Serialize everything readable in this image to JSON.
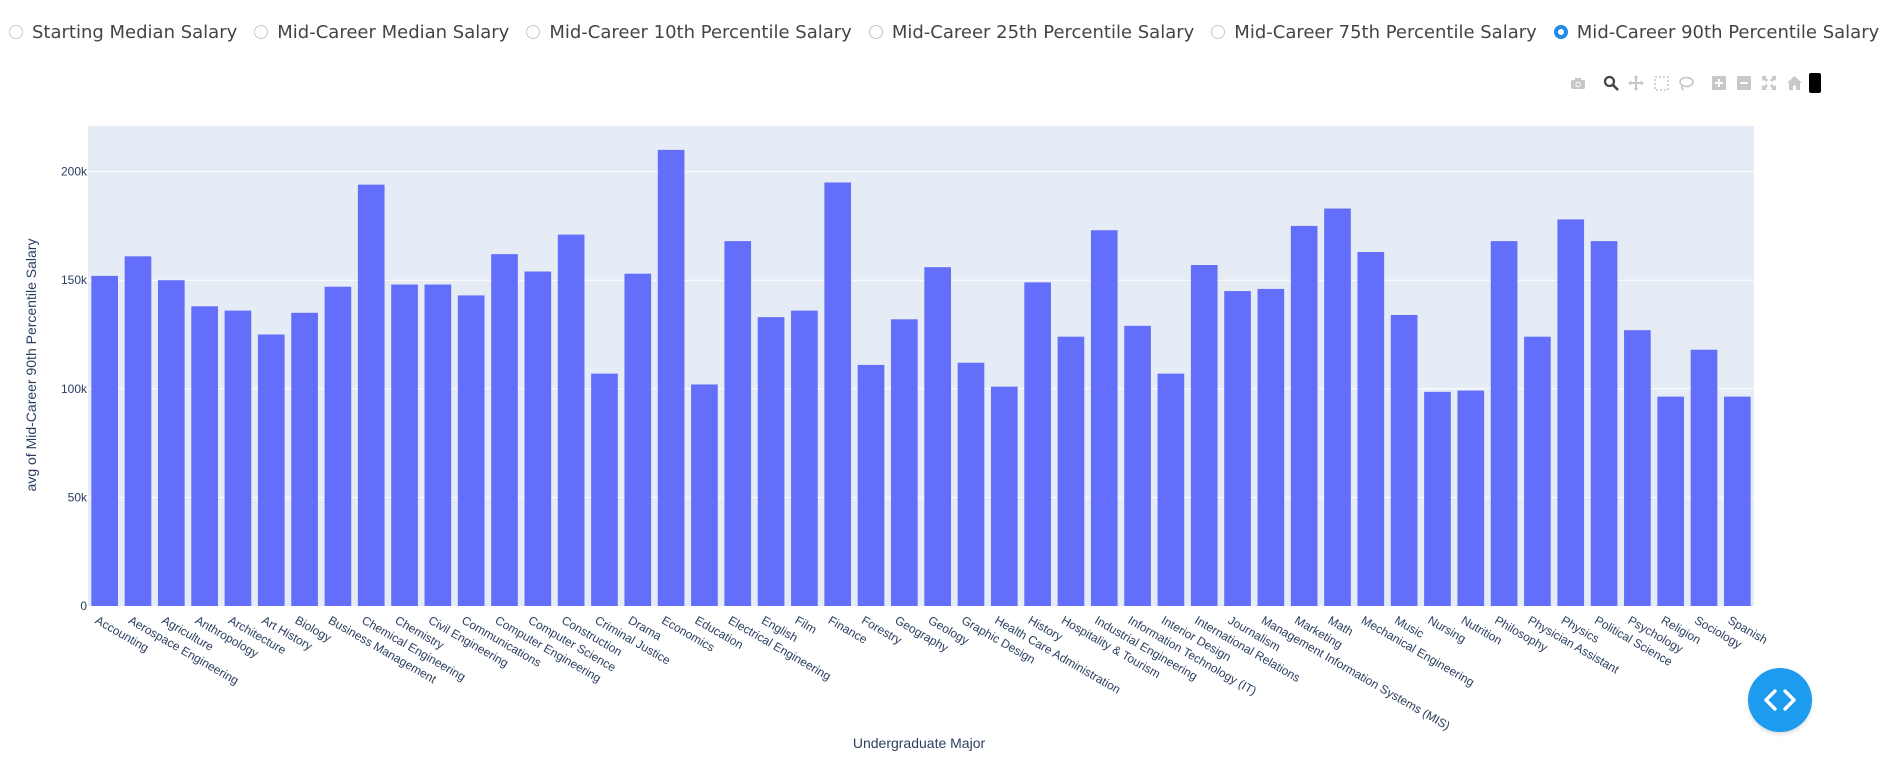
{
  "radio_options": [
    {
      "label": "Starting Median Salary",
      "checked": false
    },
    {
      "label": "Mid-Career Median Salary",
      "checked": false
    },
    {
      "label": "Mid-Career 10th Percentile Salary",
      "checked": false
    },
    {
      "label": "Mid-Career 25th Percentile Salary",
      "checked": false
    },
    {
      "label": "Mid-Career 75th Percentile Salary",
      "checked": false
    },
    {
      "label": "Mid-Career 90th Percentile Salary",
      "checked": true
    }
  ],
  "modebar": {
    "icons": [
      "camera-icon",
      "zoom-icon",
      "pan-icon",
      "box-select-icon",
      "lasso-icon",
      "zoom-in-icon",
      "zoom-out-icon",
      "autoscale-icon",
      "reset-axes-icon"
    ]
  },
  "colors": {
    "bar": "#636efa",
    "plot_bg": "#e5ecf6",
    "grid": "#ffffff",
    "tick_text": "#2a3f5f",
    "accent": "#228be6",
    "fab": "#1c9bef"
  },
  "chart_data": {
    "type": "bar",
    "xlabel": "Undergraduate Major",
    "ylabel": "avg of Mid-Career 90th Percentile Salary",
    "ylim": [
      0,
      221000
    ],
    "yticks": [
      0,
      50000,
      100000,
      150000,
      200000
    ],
    "ytick_labels": [
      "0",
      "50k",
      "100k",
      "150k",
      "200k"
    ],
    "grid": true,
    "categories": [
      "Accounting",
      "Aerospace Engineering",
      "Agriculture",
      "Anthropology",
      "Architecture",
      "Art History",
      "Biology",
      "Business Management",
      "Chemical Engineering",
      "Chemistry",
      "Civil Engineering",
      "Communications",
      "Computer Engineering",
      "Computer Science",
      "Construction",
      "Criminal Justice",
      "Drama",
      "Economics",
      "Education",
      "Electrical Engineering",
      "English",
      "Film",
      "Finance",
      "Forestry",
      "Geography",
      "Geology",
      "Graphic Design",
      "Health Care Administration",
      "History",
      "Hospitality & Tourism",
      "Industrial Engineering",
      "Information Technology (IT)",
      "Interior Design",
      "International Relations",
      "Journalism",
      "Management Information Systems (MIS)",
      "Marketing",
      "Math",
      "Mechanical Engineering",
      "Music",
      "Nursing",
      "Nutrition",
      "Philosophy",
      "Physician Assistant",
      "Physics",
      "Political Science",
      "Psychology",
      "Religion",
      "Sociology",
      "Spanish"
    ],
    "values": [
      152000,
      161000,
      150000,
      138000,
      136000,
      125000,
      135000,
      147000,
      194000,
      148000,
      148000,
      143000,
      162000,
      154000,
      171000,
      107000,
      153000,
      210000,
      102000,
      168000,
      133000,
      136000,
      195000,
      111000,
      132000,
      156000,
      112000,
      101000,
      149000,
      124000,
      173000,
      129000,
      107000,
      157000,
      145000,
      146000,
      175000,
      183000,
      163000,
      134000,
      98600,
      99200,
      168000,
      124000,
      178000,
      168000,
      127000,
      96400,
      118000,
      96400
    ]
  }
}
